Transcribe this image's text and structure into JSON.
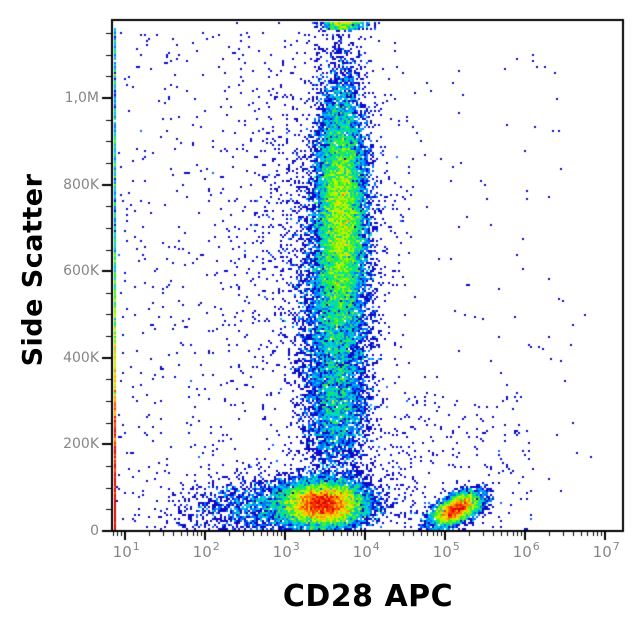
{
  "chart_data": {
    "type": "scatter",
    "subtype": "flow-cytometry-density-dot-plot",
    "title": "",
    "xlabel": "CD28 APC",
    "ylabel": "Side Scatter",
    "grid": false,
    "legend": false,
    "x_axis": {
      "scale": "log10",
      "range_log10": [
        0.8375,
        7.225
      ],
      "major_tick_exponents": [
        1,
        2,
        3,
        4,
        5,
        6,
        7
      ],
      "tick_label_base": "10",
      "minor_tick_decades": [
        0,
        1,
        2,
        3,
        4,
        5,
        6
      ]
    },
    "y_axis": {
      "scale": "linear",
      "range": [
        0,
        1180000
      ],
      "major_ticks": [
        {
          "value": 0,
          "label": "0"
        },
        {
          "value": 200000,
          "label": "200K"
        },
        {
          "value": 400000,
          "label": "400K"
        },
        {
          "value": 600000,
          "label": "600K"
        },
        {
          "value": 800000,
          "label": "800K"
        },
        {
          "value": 1000000,
          "label": "1,0M"
        }
      ],
      "minor_tick_step": 50000
    },
    "colormap": {
      "name": "jet-density",
      "log_max_count": 30,
      "stops": [
        [
          0.0,
          10,
          10,
          200
        ],
        [
          0.12,
          0,
          60,
          255
        ],
        [
          0.25,
          0,
          140,
          255
        ],
        [
          0.38,
          0,
          210,
          230
        ],
        [
          0.5,
          0,
          230,
          120
        ],
        [
          0.6,
          70,
          240,
          30
        ],
        [
          0.7,
          170,
          250,
          0
        ],
        [
          0.78,
          240,
          230,
          0
        ],
        [
          0.86,
          255,
          160,
          0
        ],
        [
          0.93,
          255,
          70,
          0
        ],
        [
          1.0,
          225,
          0,
          0
        ]
      ]
    },
    "render_seed": 42,
    "populations": [
      {
        "name": "granulocytes-main",
        "n": 14000,
        "x": {
          "dist": "gauss",
          "mean": 3.7,
          "sd": 0.16
        },
        "y": {
          "dist": "gauss",
          "mean": 740000,
          "sd": 150000
        }
      },
      {
        "name": "granulocytes-lower",
        "n": 4000,
        "x": {
          "dist": "gauss",
          "mean": 3.62,
          "sd": 0.22
        },
        "y": {
          "dist": "gauss",
          "mean": 480000,
          "sd": 130000
        }
      },
      {
        "name": "granulocytes-left-fringe",
        "n": 900,
        "x": {
          "dist": "gauss",
          "mean": 3.3,
          "sd": 0.45
        },
        "y": {
          "dist": "gauss",
          "mean": 680000,
          "sd": 200000
        }
      },
      {
        "name": "monocytes-bridge",
        "n": 2600,
        "x": {
          "dist": "gauss",
          "mean": 3.66,
          "sd": 0.2
        },
        "y": {
          "dist": "gauss",
          "mean": 280000,
          "sd": 80000
        }
      },
      {
        "name": "lymphocytes-cd28pos",
        "n": 10000,
        "x": {
          "dist": "gauss",
          "mean": 3.48,
          "sd": 0.26
        },
        "y": {
          "dist": "gauss",
          "mean": 62000,
          "sd": 26000
        }
      },
      {
        "name": "lymphocytes-dim",
        "n": 2000,
        "x": {
          "dist": "gauss",
          "mean": 3.2,
          "sd": 0.5
        },
        "y": {
          "dist": "gauss",
          "mean": 60000,
          "sd": 35000
        }
      },
      {
        "name": "cd28-bright-cluster",
        "n": 4000,
        "x": {
          "dist": "gauss",
          "mean": 5.14,
          "sd": 0.16
        },
        "y": {
          "dist": "gauss",
          "mean": 50000,
          "sd": 20000
        },
        "corr": 0.55
      },
      {
        "name": "debris-bottom-left",
        "n": 700,
        "x": {
          "dist": "gauss",
          "mean": 2.45,
          "sd": 0.45
        },
        "y": {
          "dist": "gauss",
          "mean": 50000,
          "sd": 35000
        }
      },
      {
        "name": "axis-strip-low",
        "n": 2200,
        "x": {
          "dist": "gauss",
          "mean": 0.853,
          "sd": 0.008
        },
        "y": {
          "dist": "absgauss",
          "sd": 260000
        }
      },
      {
        "name": "axis-strip-uniform",
        "n": 900,
        "x": {
          "dist": "gauss",
          "mean": 0.853,
          "sd": 0.008
        },
        "y": {
          "dist": "uniform",
          "min": 0,
          "max": 1160000
        }
      },
      {
        "name": "top-edge-pileup",
        "n": 500,
        "x": {
          "dist": "gauss",
          "mean": 3.73,
          "sd": 0.13
        },
        "y": {
          "dist": "uniform",
          "min": 1158000,
          "max": 1178000
        }
      },
      {
        "name": "background-sparse",
        "n": 900,
        "x": {
          "dist": "uniform",
          "min": 0.9,
          "max": 4.6
        },
        "y": {
          "dist": "uniform",
          "min": 0,
          "max": 1150000
        }
      },
      {
        "name": "background-right-low",
        "n": 220,
        "x": {
          "dist": "uniform",
          "min": 4.25,
          "max": 6.1
        },
        "y": {
          "dist": "uniform",
          "min": 0,
          "max": 320000
        }
      },
      {
        "name": "background-right-upper",
        "n": 70,
        "x": {
          "dist": "uniform",
          "min": 4.2,
          "max": 6.6
        },
        "y": {
          "dist": "uniform",
          "min": 320000,
          "max": 1100000
        }
      },
      {
        "name": "background-far-right",
        "n": 12,
        "x": {
          "dist": "uniform",
          "min": 5.9,
          "max": 7.1
        },
        "y": {
          "dist": "uniform",
          "min": 0,
          "max": 900000
        }
      }
    ]
  },
  "colors": {
    "axis": "#000000",
    "tick_label": "#868686",
    "axis_label": "#000000",
    "background": "#ffffff"
  }
}
